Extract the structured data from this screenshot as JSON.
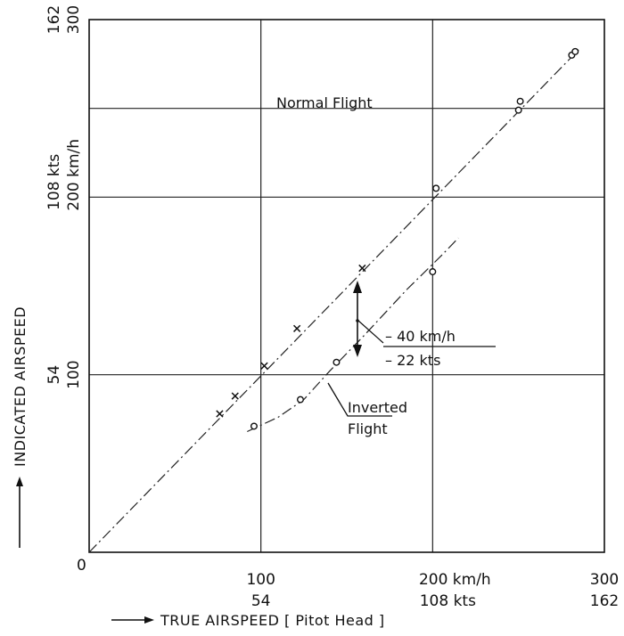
{
  "chart_data": {
    "type": "scatter",
    "title": "",
    "xlabel": "TRUE AIRSPEED [ Pitot Head ]",
    "ylabel": "INDICATED AIRSPEED",
    "xlim": [
      0,
      300
    ],
    "ylim": [
      0,
      300
    ],
    "grid": true,
    "x_ticks": [
      {
        "value": 0,
        "label": "0",
        "label2": ""
      },
      {
        "value": 100,
        "label": "100",
        "label2": "54"
      },
      {
        "value": 200,
        "label": "200 km/h",
        "label2": "108 kts"
      },
      {
        "value": 300,
        "label": "300",
        "label2": "162"
      }
    ],
    "y_ticks": [
      {
        "value": 0,
        "label": "0",
        "label2": ""
      },
      {
        "value": 100,
        "label": "100",
        "label2": "54"
      },
      {
        "value": 200,
        "label": "200 km/h",
        "label2": "108 kts"
      },
      {
        "value": 300,
        "label": "300",
        "label2": "162"
      }
    ],
    "series": [
      {
        "name": "Normal Flight",
        "marker": "x",
        "line_style": "dash-dot",
        "fit_line": [
          [
            0,
            0
          ],
          [
            285,
            283
          ]
        ],
        "points": [
          [
            76,
            78
          ],
          [
            85,
            88
          ],
          [
            102,
            105
          ],
          [
            121,
            126
          ],
          [
            159,
            160
          ]
        ]
      },
      {
        "name": "Normal Flight",
        "marker": "o",
        "line_style": "none",
        "points": [
          [
            202,
            205
          ],
          [
            250,
            249
          ],
          [
            251,
            254
          ],
          [
            281,
            280
          ],
          [
            283,
            282
          ]
        ]
      },
      {
        "name": "Inverted Flight",
        "marker": "o",
        "line_style": "dash-dot",
        "fit_line": [
          [
            92,
            68
          ],
          [
            110,
            76
          ],
          [
            125,
            86
          ],
          [
            140,
            102
          ],
          [
            160,
            122
          ],
          [
            185,
            148
          ],
          [
            205,
            167
          ],
          [
            215,
            177
          ]
        ],
        "points": [
          [
            96,
            71
          ],
          [
            123,
            86
          ],
          [
            144,
            107
          ],
          [
            200,
            158
          ]
        ]
      }
    ],
    "annotations": {
      "normal_label": "Normal Flight",
      "inverted_label_1": "Inverted",
      "inverted_label_2": "Flight",
      "difference_1": "– 40 km/h",
      "difference_2": "– 22 kts"
    }
  }
}
